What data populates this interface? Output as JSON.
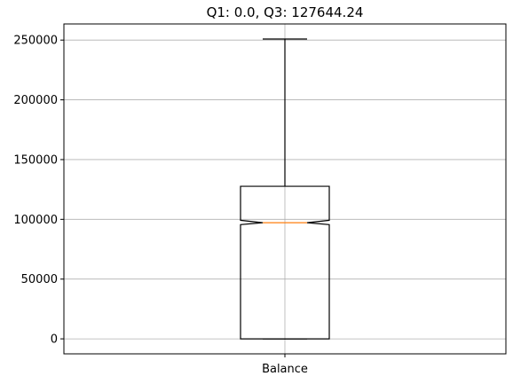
{
  "chart_data": {
    "type": "box",
    "title": "Q1: 0.0, Q3: 127644.24",
    "xlabel": "",
    "ylabel": "",
    "categories": [
      "Balance"
    ],
    "ylim": [
      -12550,
      263500
    ],
    "yticks": [
      0,
      50000,
      100000,
      150000,
      200000,
      250000
    ],
    "ytick_labels": [
      "0",
      "50000",
      "100000",
      "150000",
      "200000",
      "250000"
    ],
    "grid": true,
    "notched": true,
    "series": [
      {
        "whisker_low": 0,
        "q1": 0.0,
        "median": 97200,
        "q3": 127644.24,
        "whisker_high": 250900,
        "notch_low": 95600,
        "notch_high": 99200
      }
    ],
    "colors": {
      "box": "#000000",
      "median": "#ff7f0e",
      "grid": "#b0b0b0"
    }
  }
}
